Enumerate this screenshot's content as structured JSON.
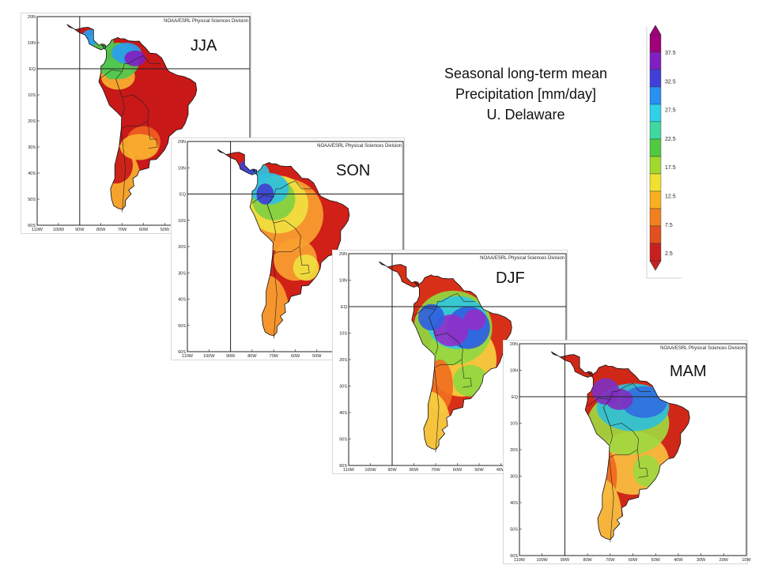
{
  "title": {
    "line1": "Seasonal long-term mean",
    "line2": "Precipitation [mm/day]",
    "line3": "U. Delaware"
  },
  "credit": "NOAA/ESRL Physical Sciences Division",
  "colorbar": {
    "labels": [
      "37.5",
      "32.5",
      "27.5",
      "22.5",
      "17.5",
      "12.5",
      "7.5",
      "2.5"
    ],
    "colors": [
      "#a0007a",
      "#8020c0",
      "#4040d8",
      "#2890f0",
      "#30d0e8",
      "#40d8a0",
      "#50c840",
      "#a0d830",
      "#f0e030",
      "#f8b020",
      "#f08020",
      "#e05020",
      "#c82020"
    ]
  },
  "lat_labels": [
    "20N",
    "10N",
    "EQ",
    "10S",
    "20S",
    "30S",
    "40S",
    "50S",
    "60S"
  ],
  "lon_labels": [
    "110W",
    "100W",
    "90W",
    "80W",
    "70W",
    "60W",
    "50W",
    "40W",
    "30W",
    "20W",
    "10W"
  ],
  "panels": [
    {
      "season": "JJA",
      "scheme": [
        "#c81818",
        "#e03818",
        "#f06020",
        "#f8b030",
        "#50c850",
        "#28a0f0",
        "#8020c0"
      ]
    },
    {
      "season": "SON",
      "scheme": [
        "#d02018",
        "#e85020",
        "#f8a030",
        "#f0e040",
        "#80d040",
        "#30c0e0",
        "#4040d0"
      ]
    },
    {
      "season": "DJF",
      "scheme": [
        "#d83018",
        "#f07020",
        "#f8d040",
        "#90d840",
        "#30c8e0",
        "#3060e0",
        "#9030c8"
      ]
    },
    {
      "season": "MAM",
      "scheme": [
        "#d02818",
        "#f06820",
        "#f8c040",
        "#a0d840",
        "#30c0d8",
        "#3070e0",
        "#8030c0"
      ]
    }
  ]
}
